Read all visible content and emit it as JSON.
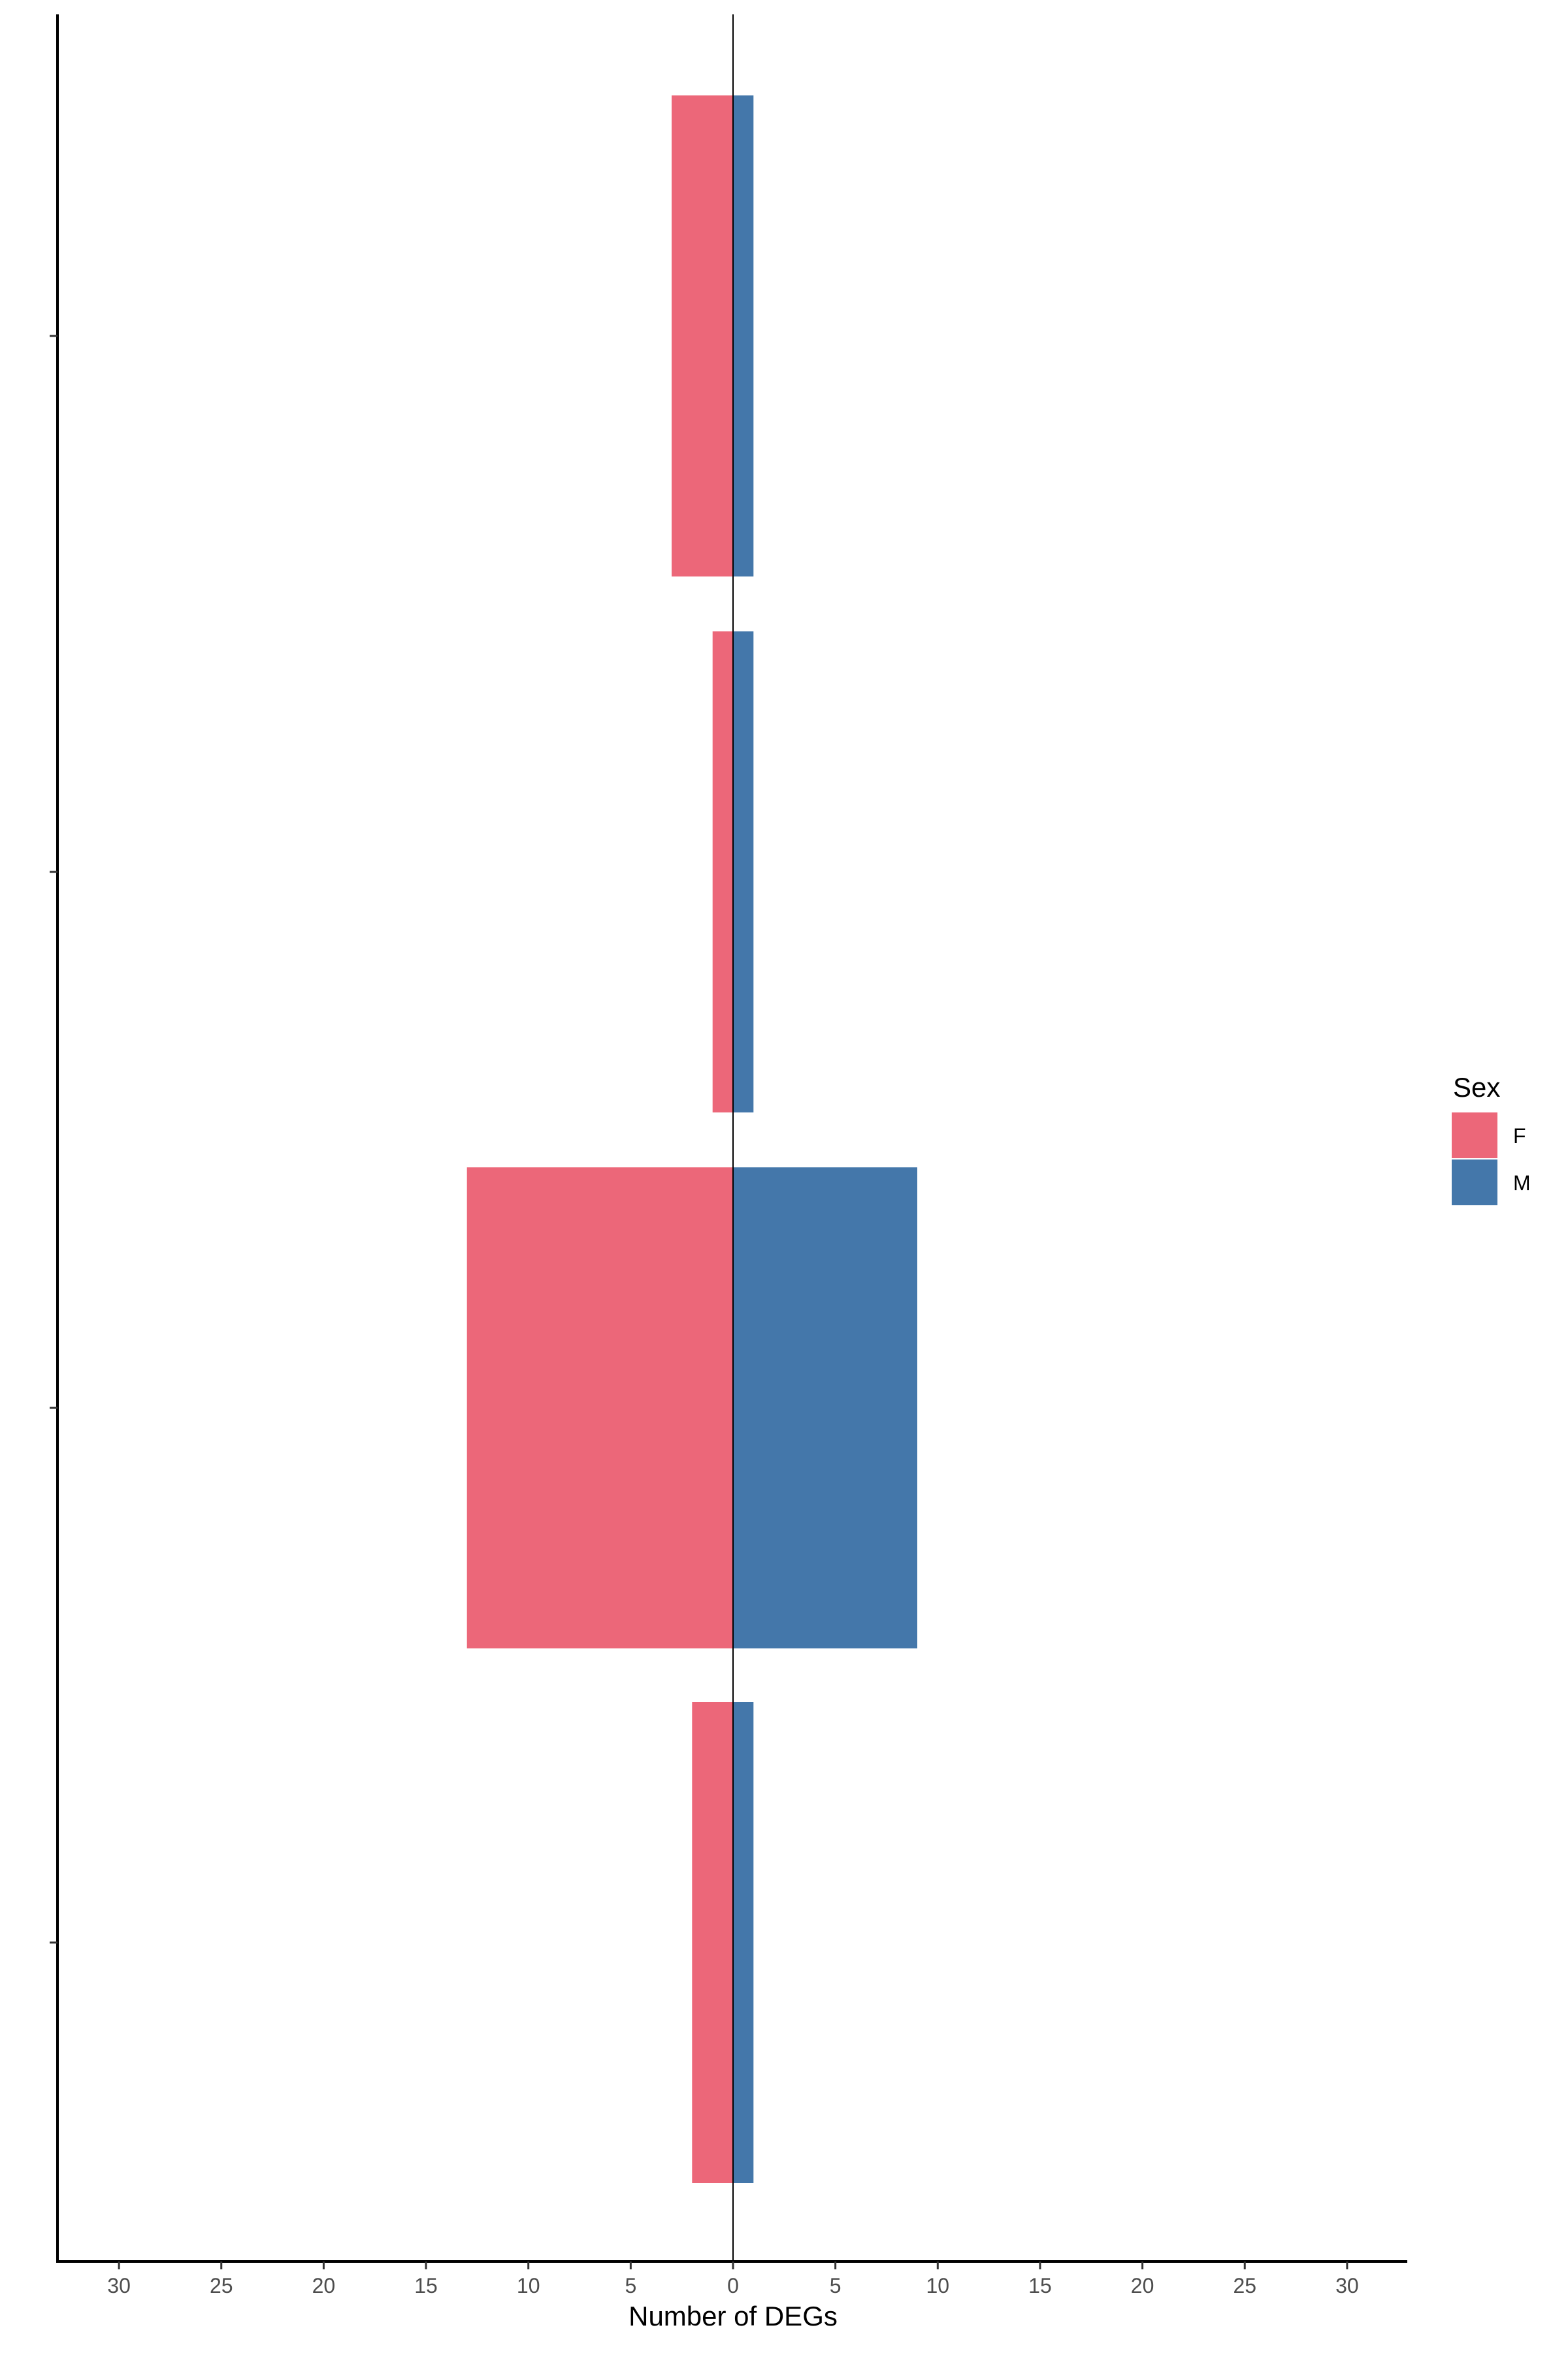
{
  "chart_data": {
    "type": "bar",
    "orientation": "horizontal",
    "layout": "diverging",
    "title": "",
    "xlabel": "Number of DEGs",
    "ylabel": "",
    "xlim": [
      -33,
      33
    ],
    "x_ticks": [
      -30,
      -25,
      -20,
      -15,
      -10,
      -5,
      0,
      5,
      10,
      15,
      20,
      25,
      30
    ],
    "x_tick_labels": [
      "30",
      "25",
      "20",
      "15",
      "10",
      "5",
      "0",
      "5",
      "10",
      "15",
      "20",
      "25",
      "30"
    ],
    "categories": [
      "",
      "",
      "",
      ""
    ],
    "series": [
      {
        "name": "F",
        "color": "#EC6779",
        "side": "negative",
        "values": [
          2,
          13,
          1,
          3
        ]
      },
      {
        "name": "M",
        "color": "#4477AA",
        "side": "positive",
        "values": [
          1,
          9,
          1,
          1
        ]
      }
    ],
    "grid": false,
    "zero_line": true,
    "legend": {
      "title": "Sex",
      "placement": "right",
      "entries": [
        "F",
        "M"
      ]
    }
  }
}
